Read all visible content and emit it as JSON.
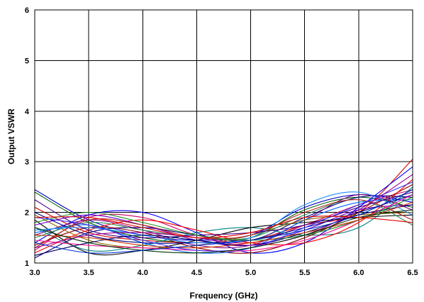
{
  "chart_data": {
    "type": "line",
    "title": "",
    "xlabel": "Frequency (GHz)",
    "ylabel": "Output VSWR",
    "xlim": [
      3.0,
      6.5
    ],
    "ylim": [
      1,
      6
    ],
    "x_tick_labels": [
      "3.0",
      "3.5",
      "4.0",
      "4.5",
      "5.0",
      "5.5",
      "6.0",
      "6.5"
    ],
    "y_tick_labels": [
      "1",
      "2",
      "3",
      "4",
      "5",
      "6"
    ],
    "grid": true,
    "legend": "none",
    "x": [
      3.0,
      3.5,
      4.0,
      4.5,
      5.0,
      5.5,
      6.0,
      6.5
    ],
    "series": [
      {
        "color": "#0000cc",
        "values": [
          2.45,
          1.85,
          1.55,
          1.45,
          1.55,
          2.1,
          2.35,
          2.2
        ]
      },
      {
        "color": "#006400",
        "values": [
          2.4,
          1.8,
          1.5,
          1.4,
          1.5,
          2.05,
          2.3,
          2.1
        ]
      },
      {
        "color": "#cc0000",
        "values": [
          2.1,
          1.6,
          1.45,
          1.4,
          1.45,
          1.75,
          2.0,
          3.05
        ]
      },
      {
        "color": "#cc0066",
        "values": [
          1.25,
          1.9,
          1.9,
          1.55,
          1.4,
          1.75,
          2.15,
          2.45
        ]
      },
      {
        "color": "#000080",
        "values": [
          1.1,
          1.6,
          1.7,
          1.55,
          1.45,
          1.9,
          2.3,
          2.3
        ]
      },
      {
        "color": "#0000ff",
        "values": [
          1.4,
          1.95,
          2.0,
          1.6,
          1.2,
          1.4,
          2.1,
          2.9
        ]
      },
      {
        "color": "#800080",
        "values": [
          1.55,
          1.85,
          1.65,
          1.35,
          1.35,
          1.85,
          2.35,
          2.05
        ]
      },
      {
        "color": "#008080",
        "values": [
          1.7,
          1.25,
          1.35,
          1.6,
          1.7,
          1.55,
          1.7,
          2.5
        ]
      },
      {
        "color": "#000000",
        "values": [
          1.85,
          1.2,
          1.25,
          1.45,
          1.7,
          1.8,
          1.9,
          1.95
        ]
      },
      {
        "color": "#8b0000",
        "values": [
          1.35,
          1.7,
          1.6,
          1.3,
          1.2,
          1.5,
          2.0,
          2.55
        ]
      },
      {
        "color": "#0066ff",
        "values": [
          1.6,
          1.75,
          1.4,
          1.2,
          1.3,
          1.85,
          2.2,
          2.25
        ]
      },
      {
        "color": "#996600",
        "values": [
          1.95,
          1.45,
          1.3,
          1.35,
          1.55,
          1.85,
          1.95,
          2.0
        ]
      },
      {
        "color": "#ff0000",
        "values": [
          1.2,
          1.65,
          1.85,
          1.65,
          1.4,
          1.4,
          1.8,
          2.65
        ]
      },
      {
        "color": "#6600cc",
        "values": [
          1.75,
          1.95,
          1.75,
          1.45,
          1.35,
          1.65,
          2.05,
          2.15
        ]
      },
      {
        "color": "#00008b",
        "values": [
          2.0,
          1.55,
          1.4,
          1.4,
          1.45,
          1.7,
          2.0,
          2.35
        ]
      },
      {
        "color": "#2e8b57",
        "values": [
          1.5,
          1.8,
          1.65,
          1.5,
          1.5,
          1.95,
          2.25,
          1.75
        ]
      },
      {
        "color": "#b22222",
        "values": [
          1.3,
          1.85,
          1.75,
          1.5,
          1.55,
          2.0,
          2.25,
          1.85
        ]
      },
      {
        "color": "#1e90ff",
        "values": [
          1.65,
          1.7,
          1.55,
          1.4,
          1.5,
          2.15,
          2.4,
          1.95
        ]
      },
      {
        "color": "#4b0082",
        "values": [
          2.25,
          1.65,
          1.5,
          1.55,
          1.6,
          1.75,
          2.1,
          2.4
        ]
      },
      {
        "color": "#ff1493",
        "values": [
          1.45,
          1.35,
          1.3,
          1.25,
          1.25,
          1.45,
          1.85,
          2.35
        ]
      },
      {
        "color": "#000066",
        "values": [
          1.15,
          1.4,
          1.55,
          1.45,
          1.35,
          1.6,
          1.95,
          2.15
        ]
      },
      {
        "color": "#228b22",
        "values": [
          1.8,
          2.0,
          1.8,
          1.55,
          1.45,
          1.55,
          1.85,
          2.3
        ]
      },
      {
        "color": "#cc3300",
        "values": [
          1.55,
          1.5,
          1.35,
          1.3,
          1.4,
          1.6,
          1.85,
          2.2
        ]
      },
      {
        "color": "#3333ff",
        "values": [
          1.9,
          1.75,
          1.45,
          1.25,
          1.3,
          1.7,
          2.15,
          2.6
        ]
      },
      {
        "color": "#990099",
        "values": [
          1.3,
          1.55,
          1.6,
          1.5,
          1.35,
          1.55,
          2.05,
          2.75
        ]
      },
      {
        "color": "#003300",
        "values": [
          1.7,
          1.4,
          1.25,
          1.2,
          1.3,
          1.55,
          1.9,
          2.05
        ]
      },
      {
        "color": "#e60000",
        "values": [
          1.9,
          1.9,
          1.7,
          1.5,
          1.6,
          1.9,
          1.9,
          1.8
        ]
      },
      {
        "color": "#0033cc",
        "values": [
          1.4,
          1.2,
          1.25,
          1.35,
          1.45,
          1.65,
          1.95,
          2.45
        ]
      }
    ]
  }
}
